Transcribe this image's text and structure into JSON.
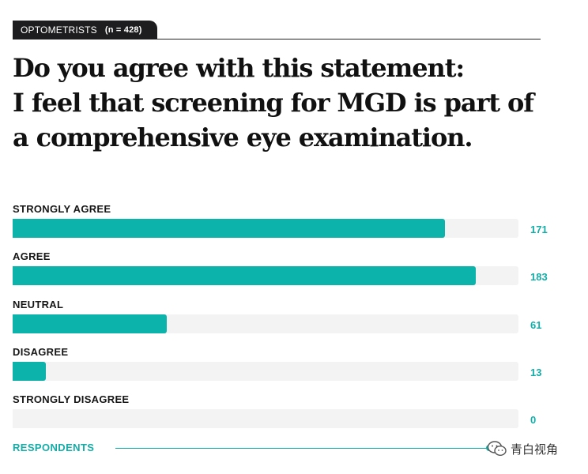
{
  "header": {
    "tab_label": "OPTOMETRISTS",
    "sample_size": "(n = 428)"
  },
  "question": "Do you agree with this statement:\nI feel that screening for MGD is part of\na comprehensive eye examination.",
  "chart_data": {
    "type": "bar",
    "orientation": "horizontal",
    "categories": [
      "STRONGLY AGREE",
      "AGREE",
      "NEUTRAL",
      "DISAGREE",
      "STRONGLY DISAGREE"
    ],
    "values": [
      171,
      183,
      61,
      13,
      0
    ],
    "value_labels": [
      "171",
      "183",
      "61",
      "13",
      "0"
    ],
    "xlim": [
      0,
      200
    ],
    "grid": false,
    "legend": "none",
    "title": "",
    "xlabel": "RESPONDENTS",
    "ylabel": ""
  },
  "footer": {
    "axis_label": "RESPONDENTS"
  },
  "watermark": {
    "text": "青白视角",
    "icon": "wechat-icon"
  },
  "colors": {
    "bar": "#0cb3ab",
    "track": "#f3f3f3",
    "value_text": "#13aea8",
    "tab_bg": "#1d1d1f"
  }
}
